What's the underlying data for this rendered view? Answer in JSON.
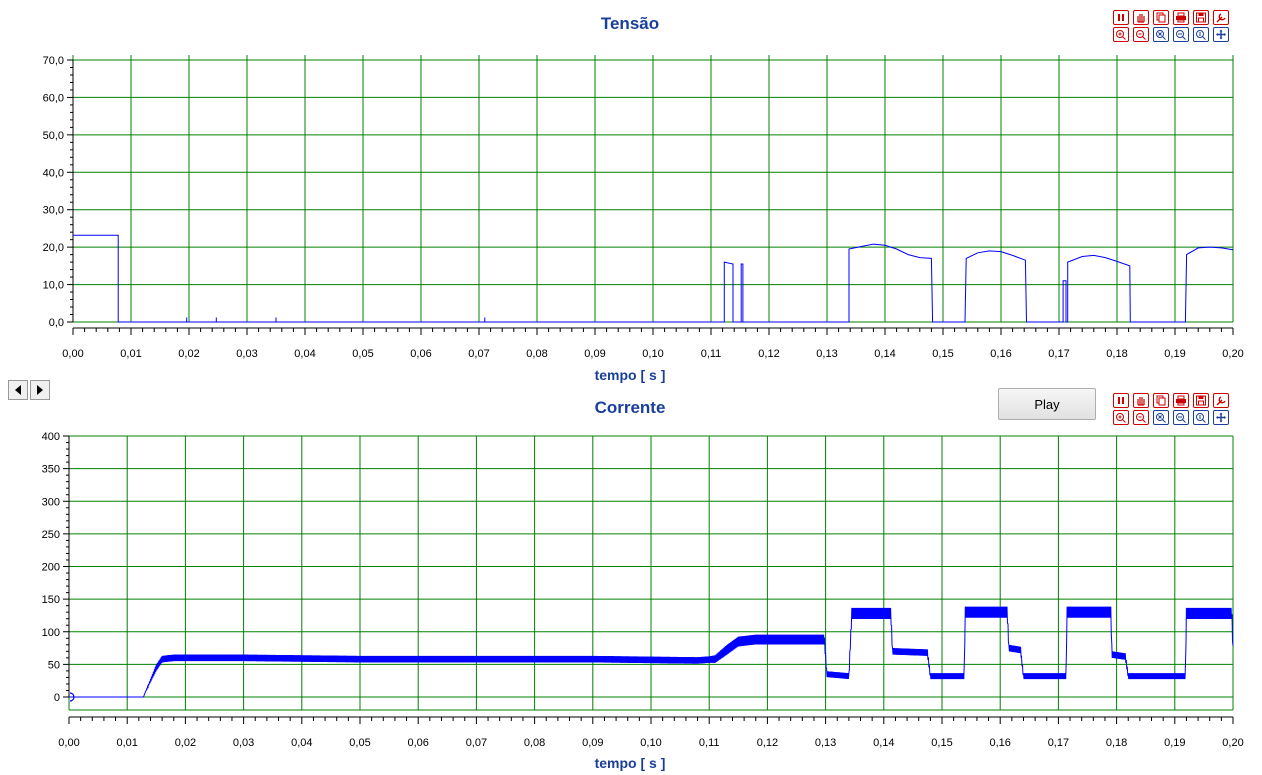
{
  "controls": {
    "play_label": "Play",
    "toolbar_icons": [
      [
        "pause-icon",
        "hand-pan-icon",
        "copy-icon",
        "print-icon",
        "save-icon",
        "wrench-settings-icon"
      ],
      [
        "zoom-in-icon",
        "zoom-out-icon",
        "zoom-fit-icon",
        "zoom-x-icon",
        "zoom-y-icon",
        "pan-move-icon"
      ]
    ],
    "nav": {
      "left": "scroll-left-icon",
      "right": "scroll-right-icon"
    }
  },
  "colors": {
    "grid": "#008000",
    "trace": "#0000ff",
    "title": "#1a3f9a",
    "toolbar_red": "#cc0000",
    "toolbar_blue": "#1a3f9a"
  },
  "chart_data": [
    {
      "type": "line",
      "title": "Tensão",
      "xlabel": "tempo [ s ]",
      "ylabel": "",
      "xlim": [
        0,
        0.2
      ],
      "ylim": [
        0,
        70
      ],
      "x_ticks": [
        "0,00",
        "0,01",
        "0,02",
        "0,03",
        "0,04",
        "0,05",
        "0,06",
        "0,07",
        "0,08",
        "0,09",
        "0,10",
        "0,11",
        "0,12",
        "0,13",
        "0,14",
        "0,15",
        "0,16",
        "0,17",
        "0,18",
        "0,19",
        "0,20"
      ],
      "y_ticks": [
        "0,0",
        "10,0",
        "20,0",
        "30,0",
        "40,0",
        "50,0",
        "60,0",
        "70,0"
      ],
      "grid": true,
      "series": [
        {
          "values": [
            [
              0,
              23.2
            ],
            [
              0.0078,
              23.2
            ],
            [
              0.0078,
              0
            ],
            [
              0.0196,
              0
            ],
            [
              0.0196,
              1.2
            ],
            [
              0.0196,
              0
            ],
            [
              0.0247,
              0
            ],
            [
              0.0247,
              1.2
            ],
            [
              0.0247,
              0
            ],
            [
              0.035,
              0
            ],
            [
              0.035,
              1.2
            ],
            [
              0.035,
              0
            ],
            [
              0.071,
              0
            ],
            [
              0.071,
              1.2
            ],
            [
              0.071,
              0
            ],
            [
              0.1123,
              0
            ],
            [
              0.1123,
              16
            ],
            [
              0.1138,
              15.5
            ],
            [
              0.1138,
              0
            ],
            [
              0.1152,
              0
            ],
            [
              0.1152,
              15.5
            ],
            [
              0.1155,
              15.5
            ],
            [
              0.1155,
              0
            ],
            [
              0.1338,
              0
            ],
            [
              0.1338,
              19.5
            ],
            [
              0.136,
              20.2
            ],
            [
              0.138,
              20.8
            ],
            [
              0.14,
              20.5
            ],
            [
              0.142,
              19.5
            ],
            [
              0.144,
              18
            ],
            [
              0.146,
              17.2
            ],
            [
              0.148,
              17
            ],
            [
              0.1482,
              0
            ],
            [
              0.1538,
              0
            ],
            [
              0.154,
              17
            ],
            [
              0.156,
              18.5
            ],
            [
              0.158,
              19
            ],
            [
              0.16,
              18.8
            ],
            [
              0.162,
              17.8
            ],
            [
              0.1642,
              16.5
            ],
            [
              0.1644,
              0
            ],
            [
              0.1707,
              0
            ],
            [
              0.1707,
              11
            ],
            [
              0.1712,
              11
            ],
            [
              0.1712,
              0
            ],
            [
              0.1715,
              0
            ],
            [
              0.1715,
              16
            ],
            [
              0.174,
              17.5
            ],
            [
              0.176,
              17.8
            ],
            [
              0.178,
              17.2
            ],
            [
              0.18,
              16.2
            ],
            [
              0.1822,
              15
            ],
            [
              0.1823,
              0
            ],
            [
              0.1918,
              0
            ],
            [
              0.192,
              18
            ],
            [
              0.194,
              19.8
            ],
            [
              0.196,
              20
            ],
            [
              0.198,
              19.8
            ],
            [
              0.2,
              19.3
            ]
          ]
        }
      ]
    },
    {
      "type": "line",
      "title": "Corrente",
      "xlabel": "tempo [ s ]",
      "ylabel": "",
      "xlim": [
        0,
        0.2
      ],
      "ylim": [
        -25,
        400
      ],
      "x_ticks": [
        "0,00",
        "0,01",
        "0,02",
        "0,03",
        "0,04",
        "0,05",
        "0,06",
        "0,07",
        "0,08",
        "0,09",
        "0,10",
        "0,11",
        "0,12",
        "0,13",
        "0,14",
        "0,15",
        "0,16",
        "0,17",
        "0,18",
        "0,19",
        "0,20"
      ],
      "y_ticks": [
        "0",
        "50",
        "100",
        "150",
        "200",
        "250",
        "300",
        "350",
        "400"
      ],
      "grid": true,
      "series": [
        {
          "values": [
            [
              0,
              0
            ],
            [
              0.0128,
              0
            ],
            [
              0.013,
              5
            ],
            [
              0.014,
              25
            ],
            [
              0.015,
              45
            ],
            [
              0.016,
              58
            ],
            [
              0.018,
              60
            ],
            [
              0.03,
              60
            ],
            [
              0.05,
              58
            ],
            [
              0.07,
              58
            ],
            [
              0.09,
              58
            ],
            [
              0.108,
              56
            ],
            [
              0.111,
              58
            ],
            [
              0.113,
              72
            ],
            [
              0.115,
              85
            ],
            [
              0.118,
              88
            ],
            [
              0.125,
              88
            ],
            [
              0.1298,
              88
            ],
            [
              0.1302,
              35
            ],
            [
              0.134,
              32
            ],
            [
              0.1345,
              128
            ],
            [
              0.1412,
              128
            ],
            [
              0.1415,
              70
            ],
            [
              0.1475,
              68
            ],
            [
              0.148,
              32
            ],
            [
              0.1538,
              32
            ],
            [
              0.154,
              130
            ],
            [
              0.1612,
              130
            ],
            [
              0.1615,
              75
            ],
            [
              0.1635,
              72
            ],
            [
              0.164,
              32
            ],
            [
              0.1713,
              32
            ],
            [
              0.1715,
              130
            ],
            [
              0.179,
              130
            ],
            [
              0.1792,
              65
            ],
            [
              0.1815,
              62
            ],
            [
              0.182,
              32
            ],
            [
              0.1918,
              32
            ],
            [
              0.192,
              128
            ],
            [
              0.1998,
              128
            ],
            [
              0.2,
              70
            ]
          ],
          "ripple_amplitude": [
            [
              0.013,
              0
            ],
            [
              0.015,
              10
            ],
            [
              0.11,
              10
            ],
            [
              0.113,
              15
            ],
            [
              0.1298,
              15
            ],
            [
              0.1302,
              9
            ],
            [
              0.134,
              9
            ],
            [
              0.1345,
              17
            ],
            [
              0.1412,
              17
            ],
            [
              0.1415,
              10
            ],
            [
              0.1475,
              10
            ],
            [
              0.148,
              9
            ],
            [
              0.1538,
              9
            ],
            [
              0.154,
              17
            ],
            [
              0.1612,
              17
            ],
            [
              0.1615,
              10
            ],
            [
              0.1635,
              10
            ],
            [
              0.164,
              9
            ],
            [
              0.1713,
              9
            ],
            [
              0.1715,
              17
            ],
            [
              0.179,
              17
            ],
            [
              0.1792,
              10
            ],
            [
              0.1815,
              10
            ],
            [
              0.182,
              9
            ],
            [
              0.1918,
              9
            ],
            [
              0.192,
              17
            ],
            [
              0.2,
              17
            ]
          ]
        }
      ]
    }
  ]
}
